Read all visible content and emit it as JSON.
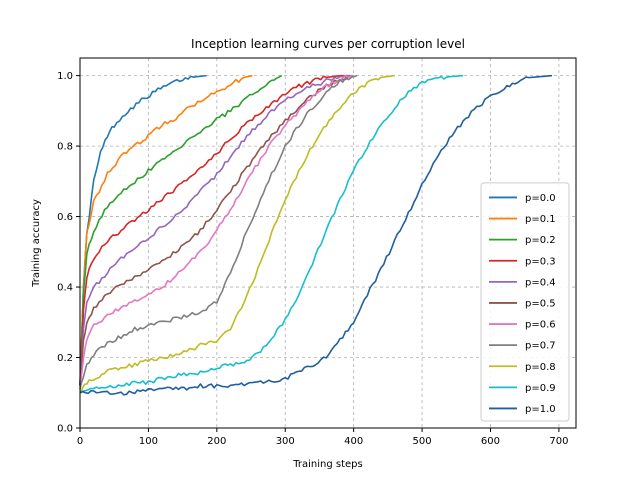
{
  "chart_data": {
    "type": "line",
    "title": "Inception learning curves per corruption level",
    "xlabel": "Training steps",
    "ylabel": "Training accuracy",
    "xlim": [
      0,
      725
    ],
    "ylim": [
      0,
      1.05
    ],
    "xticks": [
      0,
      100,
      200,
      300,
      400,
      500,
      600,
      700
    ],
    "yticks": [
      0.0,
      0.2,
      0.4,
      0.6,
      0.8,
      1.0
    ],
    "grid": true,
    "legend_position": "lower-right",
    "series": [
      {
        "name": "p=0.0",
        "color": "#1f77b4",
        "x": [
          0,
          5,
          10,
          20,
          30,
          40,
          50,
          70,
          90,
          110,
          130,
          150,
          170,
          185
        ],
        "y": [
          0.12,
          0.4,
          0.55,
          0.7,
          0.78,
          0.83,
          0.86,
          0.9,
          0.93,
          0.955,
          0.975,
          0.99,
          0.997,
          1.0
        ]
      },
      {
        "name": "p=0.1",
        "color": "#ff7f0e",
        "x": [
          0,
          5,
          10,
          20,
          40,
          60,
          80,
          100,
          120,
          140,
          160,
          180,
          200,
          220,
          240,
          252
        ],
        "y": [
          0.13,
          0.4,
          0.55,
          0.64,
          0.72,
          0.77,
          0.8,
          0.83,
          0.86,
          0.88,
          0.91,
          0.935,
          0.955,
          0.975,
          0.995,
          1.0
        ]
      },
      {
        "name": "p=0.2",
        "color": "#2ca02c",
        "x": [
          0,
          5,
          10,
          20,
          40,
          60,
          80,
          100,
          120,
          140,
          160,
          180,
          200,
          220,
          240,
          260,
          280,
          295
        ],
        "y": [
          0.12,
          0.38,
          0.5,
          0.56,
          0.63,
          0.67,
          0.7,
          0.73,
          0.76,
          0.79,
          0.82,
          0.85,
          0.875,
          0.9,
          0.93,
          0.96,
          0.985,
          1.0
        ]
      },
      {
        "name": "p=0.3",
        "color": "#d62728",
        "x": [
          0,
          5,
          10,
          20,
          40,
          60,
          80,
          100,
          120,
          140,
          160,
          180,
          200,
          220,
          240,
          260,
          280,
          300,
          320,
          340,
          360,
          380,
          395
        ],
        "y": [
          0.12,
          0.33,
          0.43,
          0.48,
          0.53,
          0.56,
          0.59,
          0.62,
          0.65,
          0.68,
          0.71,
          0.74,
          0.78,
          0.82,
          0.86,
          0.89,
          0.92,
          0.95,
          0.97,
          0.985,
          0.995,
          1.0,
          1.0
        ]
      },
      {
        "name": "p=0.4",
        "color": "#9467bd",
        "x": [
          0,
          5,
          10,
          20,
          40,
          60,
          80,
          100,
          120,
          140,
          160,
          180,
          200,
          220,
          240,
          260,
          280,
          300,
          320,
          340,
          360,
          380,
          400
        ],
        "y": [
          0.12,
          0.28,
          0.36,
          0.4,
          0.44,
          0.48,
          0.51,
          0.54,
          0.57,
          0.6,
          0.64,
          0.68,
          0.72,
          0.77,
          0.82,
          0.86,
          0.9,
          0.93,
          0.955,
          0.97,
          0.985,
          0.997,
          1.0
        ]
      },
      {
        "name": "p=0.5",
        "color": "#8c564b",
        "x": [
          0,
          5,
          10,
          20,
          40,
          60,
          80,
          100,
          120,
          140,
          160,
          180,
          200,
          220,
          240,
          260,
          280,
          300,
          320,
          340,
          360,
          380,
          400
        ],
        "y": [
          0.12,
          0.25,
          0.3,
          0.34,
          0.38,
          0.41,
          0.43,
          0.45,
          0.47,
          0.5,
          0.53,
          0.57,
          0.62,
          0.67,
          0.73,
          0.78,
          0.83,
          0.87,
          0.91,
          0.945,
          0.97,
          0.99,
          1.0
        ]
      },
      {
        "name": "p=0.6",
        "color": "#e377c2",
        "x": [
          0,
          5,
          10,
          20,
          40,
          60,
          80,
          100,
          120,
          140,
          160,
          180,
          200,
          220,
          240,
          260,
          280,
          300,
          320,
          340,
          360,
          380,
          400
        ],
        "y": [
          0.11,
          0.2,
          0.25,
          0.29,
          0.32,
          0.34,
          0.36,
          0.38,
          0.4,
          0.43,
          0.47,
          0.51,
          0.56,
          0.62,
          0.69,
          0.75,
          0.81,
          0.86,
          0.9,
          0.94,
          0.97,
          0.99,
          1.0
        ]
      },
      {
        "name": "p=0.7",
        "color": "#7f7f7f",
        "x": [
          0,
          5,
          10,
          20,
          40,
          60,
          80,
          100,
          120,
          140,
          160,
          180,
          200,
          220,
          240,
          260,
          280,
          300,
          320,
          340,
          360,
          380,
          405
        ],
        "y": [
          0.11,
          0.15,
          0.18,
          0.21,
          0.24,
          0.26,
          0.28,
          0.29,
          0.3,
          0.31,
          0.32,
          0.33,
          0.36,
          0.44,
          0.54,
          0.63,
          0.72,
          0.8,
          0.86,
          0.91,
          0.95,
          0.985,
          1.0
        ]
      },
      {
        "name": "p=0.8",
        "color": "#bcbd22",
        "x": [
          0,
          10,
          20,
          40,
          60,
          80,
          100,
          120,
          140,
          160,
          180,
          200,
          220,
          240,
          260,
          280,
          300,
          320,
          340,
          360,
          380,
          400,
          420,
          440,
          460
        ],
        "y": [
          0.1,
          0.13,
          0.14,
          0.16,
          0.17,
          0.18,
          0.19,
          0.2,
          0.21,
          0.22,
          0.24,
          0.25,
          0.28,
          0.36,
          0.45,
          0.55,
          0.65,
          0.73,
          0.8,
          0.86,
          0.91,
          0.95,
          0.98,
          0.995,
          1.0
        ]
      },
      {
        "name": "p=0.9",
        "color": "#17becf",
        "x": [
          0,
          20,
          40,
          60,
          80,
          100,
          120,
          140,
          160,
          180,
          200,
          220,
          240,
          260,
          280,
          300,
          320,
          340,
          360,
          380,
          400,
          420,
          440,
          460,
          480,
          500,
          520,
          540,
          560
        ],
        "y": [
          0.1,
          0.11,
          0.12,
          0.12,
          0.13,
          0.13,
          0.14,
          0.15,
          0.15,
          0.16,
          0.17,
          0.18,
          0.19,
          0.21,
          0.25,
          0.31,
          0.38,
          0.47,
          0.56,
          0.65,
          0.73,
          0.8,
          0.86,
          0.91,
          0.95,
          0.98,
          0.99,
          0.997,
          1.0
        ]
      },
      {
        "name": "p=1.0",
        "color": "#1f5f9f",
        "x": [
          0,
          20,
          40,
          60,
          80,
          100,
          140,
          180,
          220,
          260,
          300,
          340,
          360,
          380,
          400,
          420,
          440,
          460,
          480,
          500,
          520,
          540,
          560,
          580,
          600,
          620,
          640,
          660,
          690
        ],
        "y": [
          0.1,
          0.1,
          0.1,
          0.1,
          0.1,
          0.11,
          0.11,
          0.12,
          0.12,
          0.13,
          0.14,
          0.18,
          0.2,
          0.25,
          0.3,
          0.38,
          0.45,
          0.53,
          0.61,
          0.69,
          0.76,
          0.82,
          0.87,
          0.91,
          0.94,
          0.965,
          0.985,
          0.995,
          1.0
        ]
      }
    ]
  }
}
